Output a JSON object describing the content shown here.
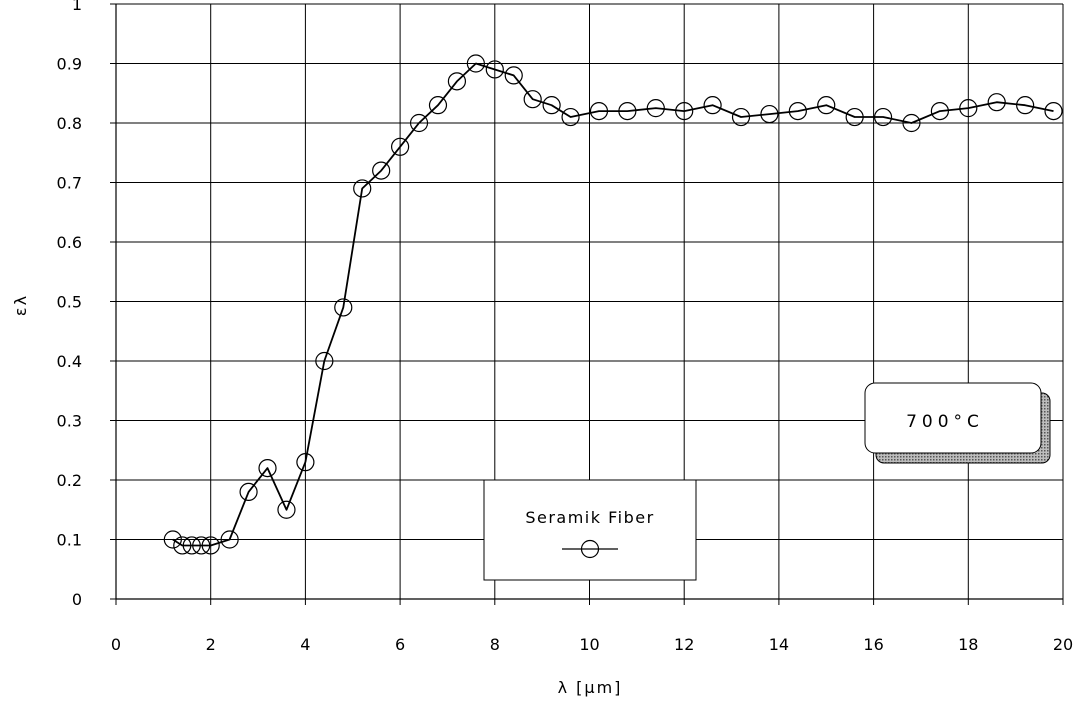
{
  "chart_data": {
    "type": "line",
    "xlabel": "λ [μm]",
    "ylabel": "ελ",
    "xlim": [
      0,
      20
    ],
    "ylim": [
      0,
      1
    ],
    "x_ticks": [
      "0",
      "2",
      "4",
      "6",
      "8",
      "10",
      "12",
      "14",
      "16",
      "18",
      "20"
    ],
    "y_ticks": [
      "0",
      "0.1",
      "0.2",
      "0.3",
      "0.4",
      "0.5",
      "0.6",
      "0.7",
      "0.8",
      "0.9",
      "1"
    ],
    "grid": true,
    "legend_position": "bottom-center",
    "annotation": "700°C",
    "colors": {
      "line": "#000000",
      "marker_edge": "#000000",
      "grid": "#000000",
      "shadow": "#888888"
    },
    "series": [
      {
        "name": "Seramik Fiber",
        "marker": "open-circle",
        "x": [
          1.2,
          1.4,
          1.6,
          1.8,
          2.0,
          2.4,
          2.8,
          3.2,
          3.6,
          4.0,
          4.4,
          4.8,
          5.2,
          5.6,
          6.0,
          6.4,
          6.8,
          7.2,
          7.6,
          8.0,
          8.4,
          8.8,
          9.2,
          9.6,
          10.2,
          10.8,
          11.4,
          12.0,
          12.6,
          13.2,
          13.8,
          14.4,
          15.0,
          15.6,
          16.2,
          16.8,
          17.4,
          18.0,
          18.6,
          19.2,
          19.8
        ],
        "y": [
          0.1,
          0.09,
          0.09,
          0.09,
          0.09,
          0.1,
          0.18,
          0.22,
          0.15,
          0.23,
          0.4,
          0.49,
          0.69,
          0.72,
          0.76,
          0.8,
          0.83,
          0.87,
          0.9,
          0.89,
          0.88,
          0.84,
          0.83,
          0.81,
          0.82,
          0.82,
          0.825,
          0.82,
          0.83,
          0.81,
          0.815,
          0.82,
          0.83,
          0.81,
          0.81,
          0.8,
          0.82,
          0.825,
          0.835,
          0.83,
          0.82
        ]
      }
    ]
  }
}
